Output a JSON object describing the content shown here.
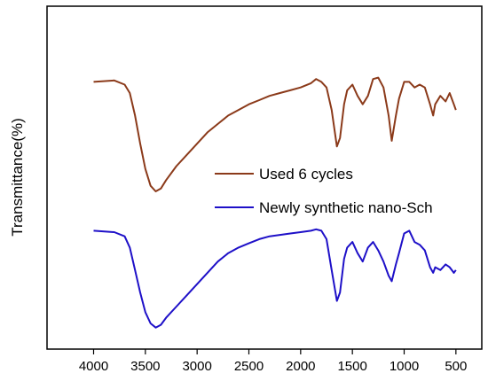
{
  "chart_data": {
    "type": "line",
    "xlabel": "",
    "ylabel": "Transmittance(%)",
    "xlim": [
      4450,
      250
    ],
    "x_reversed": true,
    "x_ticks": [
      4000,
      3500,
      3000,
      2500,
      2000,
      1500,
      1000,
      500
    ],
    "ylim": [
      0,
      100
    ],
    "y_ticks_shown": false,
    "grid": false,
    "legend": {
      "placement": "center-right",
      "entries": [
        "Used 6 cycles",
        "Newly synthetic nano-Sch"
      ]
    },
    "series": [
      {
        "name": "Used 6 cycles",
        "color": "#8b3a1a",
        "points": [
          [
            4000,
            92
          ],
          [
            3800,
            92.5
          ],
          [
            3700,
            91
          ],
          [
            3650,
            88
          ],
          [
            3600,
            80
          ],
          [
            3550,
            70
          ],
          [
            3500,
            61
          ],
          [
            3450,
            55
          ],
          [
            3400,
            53
          ],
          [
            3350,
            54
          ],
          [
            3300,
            57
          ],
          [
            3200,
            62
          ],
          [
            3100,
            66
          ],
          [
            3000,
            70
          ],
          [
            2900,
            74
          ],
          [
            2800,
            77
          ],
          [
            2700,
            80
          ],
          [
            2600,
            82
          ],
          [
            2500,
            84
          ],
          [
            2400,
            85.5
          ],
          [
            2300,
            87
          ],
          [
            2200,
            88
          ],
          [
            2100,
            89
          ],
          [
            2000,
            90
          ],
          [
            1900,
            91.5
          ],
          [
            1850,
            93
          ],
          [
            1800,
            92
          ],
          [
            1750,
            90
          ],
          [
            1700,
            82
          ],
          [
            1650,
            69
          ],
          [
            1620,
            72
          ],
          [
            1580,
            84
          ],
          [
            1550,
            89
          ],
          [
            1500,
            91
          ],
          [
            1450,
            87
          ],
          [
            1400,
            84
          ],
          [
            1350,
            87
          ],
          [
            1300,
            93
          ],
          [
            1250,
            93.5
          ],
          [
            1200,
            90
          ],
          [
            1150,
            80
          ],
          [
            1120,
            71
          ],
          [
            1080,
            80
          ],
          [
            1050,
            86
          ],
          [
            1000,
            92
          ],
          [
            950,
            92
          ],
          [
            900,
            90
          ],
          [
            850,
            91
          ],
          [
            800,
            90
          ],
          [
            750,
            84
          ],
          [
            720,
            80
          ],
          [
            700,
            84
          ],
          [
            650,
            87
          ],
          [
            600,
            85
          ],
          [
            560,
            88
          ],
          [
            520,
            84
          ],
          [
            500,
            82
          ]
        ]
      },
      {
        "name": "Newly synthetic nano-Sch",
        "color": "#1e10c8",
        "points": [
          [
            4000,
            39
          ],
          [
            3800,
            38.5
          ],
          [
            3700,
            37
          ],
          [
            3650,
            33
          ],
          [
            3600,
            25
          ],
          [
            3550,
            17
          ],
          [
            3500,
            10
          ],
          [
            3450,
            6
          ],
          [
            3400,
            4.5
          ],
          [
            3350,
            5.5
          ],
          [
            3300,
            8
          ],
          [
            3200,
            12
          ],
          [
            3100,
            16
          ],
          [
            3000,
            20
          ],
          [
            2900,
            24
          ],
          [
            2800,
            28
          ],
          [
            2700,
            31
          ],
          [
            2600,
            33
          ],
          [
            2500,
            34.5
          ],
          [
            2400,
            36
          ],
          [
            2300,
            37
          ],
          [
            2200,
            37.5
          ],
          [
            2100,
            38
          ],
          [
            2000,
            38.5
          ],
          [
            1900,
            39
          ],
          [
            1850,
            39.5
          ],
          [
            1800,
            39
          ],
          [
            1750,
            36
          ],
          [
            1700,
            25
          ],
          [
            1650,
            14
          ],
          [
            1620,
            17
          ],
          [
            1580,
            29
          ],
          [
            1550,
            33
          ],
          [
            1500,
            35
          ],
          [
            1450,
            31
          ],
          [
            1400,
            28
          ],
          [
            1350,
            33
          ],
          [
            1300,
            35
          ],
          [
            1250,
            32
          ],
          [
            1200,
            28
          ],
          [
            1150,
            23
          ],
          [
            1120,
            21
          ],
          [
            1080,
            27
          ],
          [
            1050,
            31
          ],
          [
            1000,
            38
          ],
          [
            950,
            39
          ],
          [
            900,
            35
          ],
          [
            850,
            34
          ],
          [
            800,
            32
          ],
          [
            750,
            26
          ],
          [
            720,
            24
          ],
          [
            700,
            26
          ],
          [
            650,
            25
          ],
          [
            600,
            27
          ],
          [
            560,
            26
          ],
          [
            520,
            24
          ],
          [
            500,
            25
          ]
        ]
      }
    ]
  }
}
